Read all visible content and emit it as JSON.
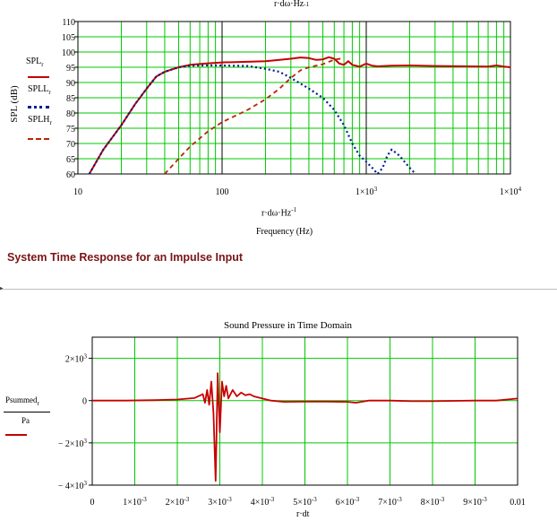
{
  "top_axis_fragment": "r·dω·Hz",
  "top_axis_fragment_sup": "-1",
  "section_title": "System Time Response for an Impulse Input",
  "section_marker": "▸",
  "colors": {
    "grid": "#00c800",
    "frame": "#000000",
    "total": "#c80000",
    "lowpass": "#001e8c",
    "highpass": "#b42800",
    "title": "#7a1414"
  },
  "chart_data": [
    {
      "type": "line",
      "id": "frequency_response",
      "x_scale": "log",
      "xlim": [
        10,
        10000
      ],
      "ylim": [
        60,
        110
      ],
      "x_tick_labels": [
        {
          "x": 10,
          "text": "10",
          "sup": ""
        },
        {
          "x": 100,
          "text": "100",
          "sup": ""
        },
        {
          "x": 1000,
          "text": "1×10",
          "sup": "3"
        },
        {
          "x": 10000,
          "text": "1×10",
          "sup": "4"
        }
      ],
      "y_ticks": [
        60,
        65,
        70,
        75,
        80,
        85,
        90,
        95,
        100,
        105,
        110
      ],
      "xlabel_expr": "r·dω·Hz",
      "xlabel_sup": "-1",
      "xlabel": "Frequency (Hz)",
      "ylabel": "SPL (dB)",
      "legend": [
        {
          "name": "SPL",
          "sub": "r",
          "style": "solid",
          "color": "#c80000"
        },
        {
          "name": "SPLL",
          "sub": "r",
          "style": "dotted",
          "color": "#001e8c"
        },
        {
          "name": "SPLH",
          "sub": "r",
          "style": "dashed",
          "color": "#b42800"
        }
      ],
      "series": [
        {
          "name": "SPL",
          "style": "solid",
          "color": "#c80000",
          "x": [
            12,
            15,
            20,
            25,
            30,
            35,
            40,
            50,
            60,
            80,
            100,
            150,
            200,
            250,
            300,
            350,
            400,
            450,
            500,
            550,
            600,
            650,
            700,
            750,
            800,
            900,
            1000,
            1100,
            1200,
            1500,
            2000,
            3000,
            5000,
            7000,
            8000,
            9000,
            10000
          ],
          "y": [
            60,
            68,
            76,
            83,
            88,
            92,
            93.5,
            95,
            95.8,
            96.3,
            96.6,
            96.8,
            97,
            97.4,
            97.8,
            98.2,
            98,
            97.4,
            97.6,
            98.3,
            97.8,
            96.2,
            95.8,
            97,
            95.8,
            95.2,
            96.2,
            95.5,
            95.3,
            95.5,
            95.6,
            95.4,
            95.3,
            95.2,
            95.6,
            95.2,
            95
          ]
        },
        {
          "name": "SPLL",
          "style": "dotted",
          "color": "#001e8c",
          "x": [
            12,
            15,
            20,
            25,
            30,
            35,
            40,
            50,
            60,
            80,
            100,
            150,
            200,
            250,
            300,
            400,
            500,
            600,
            700,
            800,
            900,
            1000,
            1100,
            1200,
            1300,
            1400,
            1500,
            1600,
            1700,
            2000,
            2200
          ],
          "y": [
            60,
            68,
            76,
            83,
            88,
            92,
            93.5,
            95,
            95.5,
            95.6,
            95.6,
            95.4,
            94.5,
            93.5,
            91.5,
            88,
            85,
            81,
            76,
            70,
            66,
            64,
            62,
            60,
            62,
            66,
            68,
            67,
            66,
            62,
            60
          ]
        },
        {
          "name": "SPLH",
          "style": "dashed",
          "color": "#b42800",
          "x": [
            40,
            50,
            60,
            80,
            100,
            150,
            200,
            250,
            300,
            350,
            400,
            500,
            600,
            700
          ],
          "y": [
            60,
            65,
            69,
            74,
            77,
            81,
            84.5,
            88,
            91.5,
            94,
            95,
            96,
            97.5,
            98
          ]
        }
      ]
    },
    {
      "type": "line",
      "id": "time_response",
      "title": "Sound Pressure in Time Domain",
      "xlim": [
        0,
        0.01
      ],
      "ylim": [
        -4000,
        3000
      ],
      "x_tick_labels": [
        {
          "x": 0,
          "text": "0",
          "sup": ""
        },
        {
          "x": 0.001,
          "text": "1×10",
          "sup": "-3"
        },
        {
          "x": 0.002,
          "text": "2×10",
          "sup": "-3"
        },
        {
          "x": 0.003,
          "text": "3×10",
          "sup": "-3"
        },
        {
          "x": 0.004,
          "text": "4×10",
          "sup": "-3"
        },
        {
          "x": 0.005,
          "text": "5×10",
          "sup": "-3"
        },
        {
          "x": 0.006,
          "text": "6×10",
          "sup": "-3"
        },
        {
          "x": 0.007,
          "text": "7×10",
          "sup": "-3"
        },
        {
          "x": 0.008,
          "text": "8×10",
          "sup": "-3"
        },
        {
          "x": 0.009,
          "text": "9×10",
          "sup": "-3"
        },
        {
          "x": 0.01,
          "text": "0.01",
          "sup": ""
        }
      ],
      "y_tick_labels": [
        {
          "y": 2000,
          "text": "2×10",
          "sup": "3"
        },
        {
          "y": 0,
          "text": "0",
          "sup": ""
        },
        {
          "y": -2000,
          "text": "− 2×10",
          "sup": "3"
        },
        {
          "y": -4000,
          "text": "− 4×10",
          "sup": "3"
        }
      ],
      "xlabel": "r·dt",
      "ylabel_num": "Psummed",
      "ylabel_num_sub": "r",
      "ylabel_den": "Pa",
      "series": [
        {
          "name": "Psummed",
          "color": "#c80000",
          "x": [
            0,
            0.0008,
            0.0015,
            0.002,
            0.0024,
            0.0026,
            0.00265,
            0.0027,
            0.00275,
            0.0028,
            0.00285,
            0.0029,
            0.00295,
            0.003,
            0.00305,
            0.0031,
            0.00315,
            0.0032,
            0.0033,
            0.0034,
            0.0035,
            0.0036,
            0.0037,
            0.0038,
            0.004,
            0.0042,
            0.0045,
            0.005,
            0.0055,
            0.006,
            0.0062,
            0.0065,
            0.007,
            0.0075,
            0.008,
            0.009,
            0.0095,
            0.01
          ],
          "y": [
            0,
            0,
            20,
            50,
            120,
            300,
            -100,
            500,
            -200,
            900,
            -600,
            -3800,
            1300,
            -1500,
            900,
            200,
            700,
            100,
            500,
            200,
            380,
            250,
            300,
            200,
            100,
            0,
            -60,
            -50,
            -50,
            -60,
            -100,
            0,
            0,
            -30,
            -30,
            0,
            0,
            100
          ]
        }
      ]
    }
  ]
}
